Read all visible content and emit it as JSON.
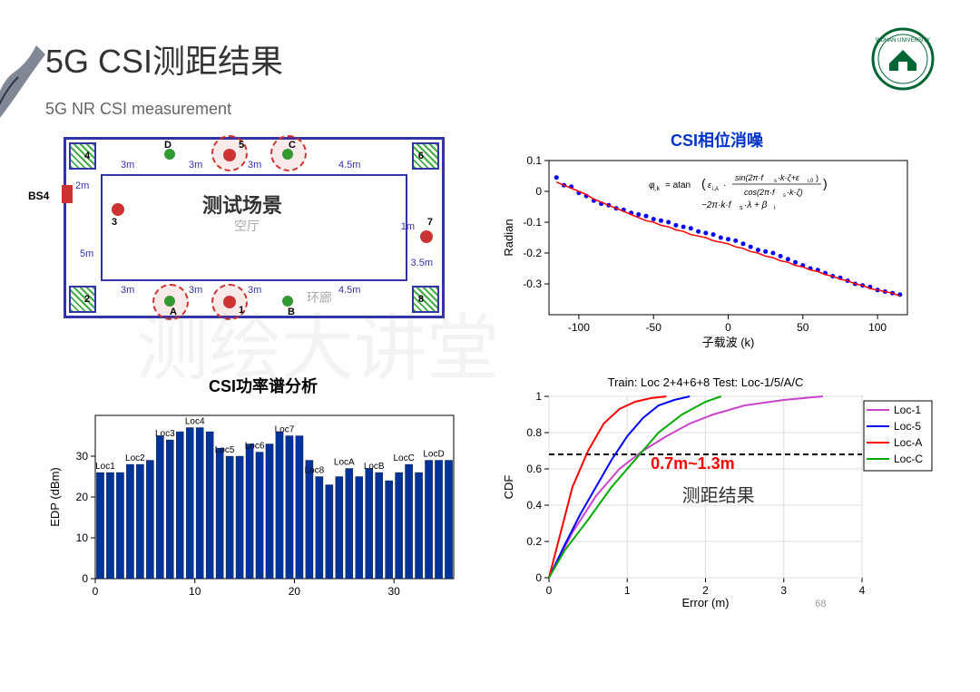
{
  "title": "5G CSI测距结果",
  "subtitle": "5G NR CSI measurement",
  "floorplan": {
    "label": "测试场景",
    "sublabel1": "空厅",
    "sublabel2": "环廊",
    "bs4": "BS4",
    "dims": [
      "2m",
      "3m",
      "3m",
      "3m",
      "4.5m",
      "5m",
      "3.5m",
      "3m",
      "3m",
      "3m",
      "4.5m",
      "1m"
    ],
    "letters": [
      "A",
      "B",
      "C",
      "D"
    ],
    "nums": [
      "1",
      "2",
      "3",
      "4",
      "5",
      "6",
      "7",
      "8"
    ]
  },
  "scatter": {
    "title": "CSI相位消噪",
    "title_color": "#0033cc",
    "ylabel": "Radian",
    "xlabel": "子载波 (k)",
    "formula": "φᵢ,ₖ = atan(εᵢ,ₐ · sin(2π·fₛ·k·ζ+εᵢ,₀)/cos(2π·fₛ·k·ζ)) − 2π·k·fₛ·λ + βᵢ",
    "xlim": [
      -120,
      120
    ],
    "ylim": [
      -0.4,
      0.1
    ],
    "xticks": [
      -100,
      -50,
      0,
      50,
      100
    ],
    "yticks": [
      -0.3,
      -0.2,
      -0.1,
      0,
      0.1
    ],
    "point_color": "#0000ff",
    "line_color": "#ff0000",
    "points_x": [
      -115,
      -110,
      -105,
      -100,
      -95,
      -90,
      -85,
      -80,
      -75,
      -70,
      -65,
      -60,
      -55,
      -50,
      -45,
      -40,
      -35,
      -30,
      -25,
      -20,
      -15,
      -10,
      -5,
      0,
      5,
      10,
      15,
      20,
      25,
      30,
      35,
      40,
      45,
      50,
      55,
      60,
      65,
      70,
      75,
      80,
      85,
      90,
      95,
      100,
      105,
      110,
      115
    ],
    "points_y": [
      0.045,
      0.02,
      0.015,
      -0.005,
      -0.015,
      -0.03,
      -0.04,
      -0.045,
      -0.055,
      -0.06,
      -0.07,
      -0.075,
      -0.08,
      -0.09,
      -0.095,
      -0.1,
      -0.11,
      -0.115,
      -0.12,
      -0.13,
      -0.135,
      -0.14,
      -0.15,
      -0.155,
      -0.16,
      -0.17,
      -0.18,
      -0.19,
      -0.195,
      -0.2,
      -0.21,
      -0.22,
      -0.23,
      -0.24,
      -0.25,
      -0.255,
      -0.265,
      -0.275,
      -0.28,
      -0.29,
      -0.3,
      -0.305,
      -0.31,
      -0.32,
      -0.325,
      -0.33,
      -0.335
    ],
    "line_y": [
      0.03,
      0.02,
      0.01,
      0,
      -0.01,
      -0.025,
      -0.035,
      -0.045,
      -0.055,
      -0.065,
      -0.075,
      -0.085,
      -0.095,
      -0.1,
      -0.11,
      -0.115,
      -0.125,
      -0.13,
      -0.14,
      -0.145,
      -0.15,
      -0.16,
      -0.165,
      -0.17,
      -0.18,
      -0.185,
      -0.195,
      -0.2,
      -0.21,
      -0.215,
      -0.225,
      -0.23,
      -0.24,
      -0.245,
      -0.255,
      -0.26,
      -0.27,
      -0.275,
      -0.285,
      -0.29,
      -0.3,
      -0.305,
      -0.315,
      -0.32,
      -0.325,
      -0.33,
      -0.34
    ]
  },
  "bars": {
    "title": "CSI功率谱分析",
    "ylabel": "EDP (dBm)",
    "ylim": [
      0,
      40
    ],
    "yticks": [
      0,
      10,
      20,
      30
    ],
    "xticks": [
      0,
      10,
      20,
      30
    ],
    "bar_color": "#003399",
    "labels": [
      "Loc1",
      "Loc2",
      "Loc3",
      "Loc4",
      "Loc5",
      "Loc6",
      "Loc7",
      "Loc8",
      "LocA",
      "LocB",
      "LocC",
      "LocD"
    ],
    "label_x": [
      1,
      4,
      7,
      10,
      13,
      16,
      19,
      22,
      25,
      28,
      31,
      34
    ],
    "values": [
      26,
      26,
      26,
      28,
      28,
      29,
      35,
      34,
      36,
      37,
      37,
      36,
      32,
      30,
      30,
      33,
      31,
      33,
      36,
      35,
      35,
      29,
      25,
      23,
      25,
      27,
      25,
      27,
      26,
      24,
      26,
      28,
      26,
      29,
      29,
      29
    ]
  },
  "cdf": {
    "title": "Train: Loc 2+4+6+8  Test: Loc-1/5/A/C",
    "ylabel": "CDF",
    "xlabel": "Error (m)",
    "xlim": [
      0,
      4
    ],
    "ylim": [
      0,
      1
    ],
    "xticks": [
      0,
      1,
      2,
      3,
      4
    ],
    "yticks": [
      0,
      0.2,
      0.4,
      0.6,
      0.8,
      1
    ],
    "annotation": "0.7m~1.3m",
    "annotation_color": "#ff0000",
    "note": "测距结果",
    "page_num": "68",
    "dash_y": 0.68,
    "legend": [
      {
        "name": "Loc-1",
        "color": "#cc44cc"
      },
      {
        "name": "Loc-5",
        "color": "#0000ff"
      },
      {
        "name": "Loc-A",
        "color": "#ff0000"
      },
      {
        "name": "Loc-C",
        "color": "#00aa00"
      }
    ],
    "lines": {
      "Loc-1": {
        "x": [
          0,
          0.3,
          0.6,
          0.9,
          1.2,
          1.5,
          1.8,
          2.1,
          2.5,
          3.0,
          3.5
        ],
        "y": [
          0,
          0.25,
          0.45,
          0.6,
          0.7,
          0.78,
          0.85,
          0.9,
          0.95,
          0.98,
          1.0
        ]
      },
      "Loc-5": {
        "x": [
          0,
          0.2,
          0.4,
          0.6,
          0.8,
          1.0,
          1.2,
          1.4,
          1.6,
          1.8
        ],
        "y": [
          0,
          0.18,
          0.35,
          0.5,
          0.65,
          0.78,
          0.88,
          0.95,
          0.98,
          1.0
        ]
      },
      "Loc-A": {
        "x": [
          0,
          0.15,
          0.3,
          0.5,
          0.7,
          0.9,
          1.1,
          1.3,
          1.5
        ],
        "y": [
          0,
          0.25,
          0.5,
          0.7,
          0.85,
          0.93,
          0.97,
          0.99,
          1.0
        ]
      },
      "Loc-C": {
        "x": [
          0,
          0.2,
          0.5,
          0.8,
          1.1,
          1.4,
          1.7,
          2.0,
          2.2
        ],
        "y": [
          0,
          0.15,
          0.32,
          0.5,
          0.65,
          0.8,
          0.9,
          0.97,
          1.0
        ]
      }
    }
  },
  "watermark": "测绘大讲堂"
}
